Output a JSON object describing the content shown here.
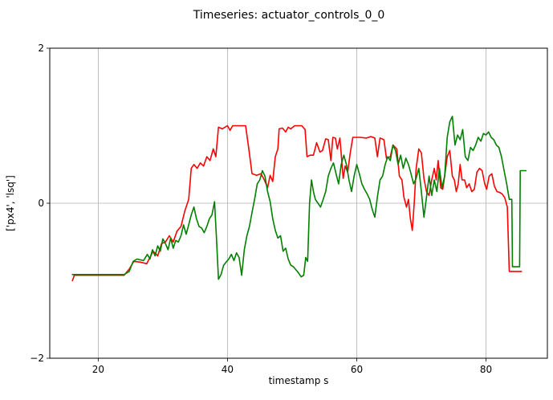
{
  "chart_data": {
    "type": "line",
    "title": "Timeseries: actuator_controls_0_0",
    "xlabel": "timestamp s",
    "ylabel": "['px4', 'lsq']",
    "xlim": [
      12.5,
      89.5
    ],
    "ylim": [
      -2,
      2
    ],
    "xticks": [
      20,
      40,
      60,
      80
    ],
    "yticks": [
      -2,
      0,
      2
    ],
    "grid": true,
    "series": [
      {
        "color": "#ff0000",
        "points": [
          [
            16.0,
            -1.0
          ],
          [
            16.3,
            -0.93
          ],
          [
            18,
            -0.93
          ],
          [
            20,
            -0.93
          ],
          [
            22,
            -0.93
          ],
          [
            24,
            -0.93
          ],
          [
            24.8,
            -0.85
          ],
          [
            25.5,
            -0.75
          ],
          [
            26.5,
            -0.76
          ],
          [
            27.5,
            -0.78
          ],
          [
            28.5,
            -0.62
          ],
          [
            29.2,
            -0.68
          ],
          [
            29.8,
            -0.52
          ],
          [
            30.4,
            -0.5
          ],
          [
            31,
            -0.42
          ],
          [
            31.6,
            -0.5
          ],
          [
            32.2,
            -0.36
          ],
          [
            32.8,
            -0.3
          ],
          [
            33.4,
            -0.1
          ],
          [
            34,
            0.05
          ],
          [
            34.4,
            0.45
          ],
          [
            34.8,
            0.5
          ],
          [
            35.3,
            0.45
          ],
          [
            35.8,
            0.52
          ],
          [
            36.3,
            0.48
          ],
          [
            36.8,
            0.6
          ],
          [
            37.3,
            0.55
          ],
          [
            37.8,
            0.7
          ],
          [
            38.2,
            0.6
          ],
          [
            38.6,
            0.98
          ],
          [
            39.2,
            0.96
          ],
          [
            40.0,
            1.0
          ],
          [
            40.4,
            0.94
          ],
          [
            40.8,
            1.0
          ],
          [
            42,
            1.0
          ],
          [
            42.8,
            1.0
          ],
          [
            43.3,
            0.7
          ],
          [
            43.8,
            0.38
          ],
          [
            44.5,
            0.36
          ],
          [
            45.2,
            0.38
          ],
          [
            45.7,
            0.3
          ],
          [
            46.2,
            0.2
          ],
          [
            46.6,
            0.36
          ],
          [
            47.0,
            0.28
          ],
          [
            47.4,
            0.6
          ],
          [
            47.8,
            0.7
          ],
          [
            48.0,
            0.96
          ],
          [
            48.5,
            0.97
          ],
          [
            49.0,
            0.92
          ],
          [
            49.4,
            0.98
          ],
          [
            49.8,
            0.96
          ],
          [
            50.4,
            1.0
          ],
          [
            51.5,
            1.0
          ],
          [
            52.0,
            0.95
          ],
          [
            52.3,
            0.6
          ],
          [
            52.8,
            0.62
          ],
          [
            53.3,
            0.62
          ],
          [
            53.8,
            0.78
          ],
          [
            54.3,
            0.66
          ],
          [
            54.7,
            0.68
          ],
          [
            55.2,
            0.83
          ],
          [
            55.6,
            0.82
          ],
          [
            56.0,
            0.55
          ],
          [
            56.3,
            0.85
          ],
          [
            56.7,
            0.84
          ],
          [
            57.0,
            0.7
          ],
          [
            57.4,
            0.84
          ],
          [
            57.9,
            0.32
          ],
          [
            58.2,
            0.48
          ],
          [
            58.6,
            0.4
          ],
          [
            59.0,
            0.65
          ],
          [
            59.4,
            0.85
          ],
          [
            60.5,
            0.85
          ],
          [
            61.5,
            0.84
          ],
          [
            62.2,
            0.86
          ],
          [
            62.8,
            0.84
          ],
          [
            63.2,
            0.6
          ],
          [
            63.6,
            0.84
          ],
          [
            64.2,
            0.82
          ],
          [
            64.6,
            0.58
          ],
          [
            65.2,
            0.6
          ],
          [
            65.6,
            0.75
          ],
          [
            66.2,
            0.7
          ],
          [
            66.6,
            0.35
          ],
          [
            67.0,
            0.3
          ],
          [
            67.3,
            0.08
          ],
          [
            67.7,
            -0.05
          ],
          [
            68.0,
            0.05
          ],
          [
            68.3,
            -0.2
          ],
          [
            68.6,
            -0.35
          ],
          [
            68.9,
            0.0
          ],
          [
            69.2,
            0.45
          ],
          [
            69.6,
            0.7
          ],
          [
            70.0,
            0.65
          ],
          [
            70.4,
            0.32
          ],
          [
            70.8,
            0.15
          ],
          [
            71.2,
            0.1
          ],
          [
            71.6,
            0.3
          ],
          [
            72.0,
            0.45
          ],
          [
            72.3,
            0.3
          ],
          [
            72.6,
            0.55
          ],
          [
            73.0,
            0.2
          ],
          [
            73.3,
            0.18
          ],
          [
            73.6,
            0.35
          ],
          [
            74.0,
            0.6
          ],
          [
            74.4,
            0.68
          ],
          [
            74.8,
            0.35
          ],
          [
            75.1,
            0.3
          ],
          [
            75.4,
            0.15
          ],
          [
            75.7,
            0.25
          ],
          [
            76.0,
            0.5
          ],
          [
            76.3,
            0.3
          ],
          [
            76.7,
            0.3
          ],
          [
            77.0,
            0.2
          ],
          [
            77.4,
            0.25
          ],
          [
            77.8,
            0.15
          ],
          [
            78.2,
            0.18
          ],
          [
            78.6,
            0.4
          ],
          [
            79.0,
            0.45
          ],
          [
            79.4,
            0.42
          ],
          [
            79.8,
            0.25
          ],
          [
            80.1,
            0.18
          ],
          [
            80.5,
            0.35
          ],
          [
            80.9,
            0.38
          ],
          [
            81.3,
            0.22
          ],
          [
            81.7,
            0.15
          ],
          [
            82.1,
            0.14
          ],
          [
            82.5,
            0.12
          ],
          [
            82.9,
            0.07
          ],
          [
            83.3,
            -0.05
          ],
          [
            83.6,
            -0.88
          ],
          [
            84.2,
            -0.88
          ],
          [
            85.5,
            -0.88
          ]
        ]
      },
      {
        "color": "#008000",
        "points": [
          [
            16.0,
            -0.92
          ],
          [
            18,
            -0.92
          ],
          [
            20,
            -0.92
          ],
          [
            22,
            -0.92
          ],
          [
            24,
            -0.92
          ],
          [
            24.8,
            -0.88
          ],
          [
            25.4,
            -0.75
          ],
          [
            26.0,
            -0.72
          ],
          [
            27.0,
            -0.74
          ],
          [
            27.6,
            -0.66
          ],
          [
            28.0,
            -0.72
          ],
          [
            28.4,
            -0.6
          ],
          [
            28.8,
            -0.68
          ],
          [
            29.2,
            -0.55
          ],
          [
            29.6,
            -0.62
          ],
          [
            30.0,
            -0.46
          ],
          [
            30.4,
            -0.52
          ],
          [
            30.8,
            -0.6
          ],
          [
            31.2,
            -0.45
          ],
          [
            31.6,
            -0.58
          ],
          [
            32.0,
            -0.48
          ],
          [
            32.4,
            -0.5
          ],
          [
            32.8,
            -0.42
          ],
          [
            33.2,
            -0.28
          ],
          [
            33.6,
            -0.4
          ],
          [
            34.0,
            -0.28
          ],
          [
            34.4,
            -0.15
          ],
          [
            34.8,
            -0.05
          ],
          [
            35.2,
            -0.2
          ],
          [
            35.6,
            -0.3
          ],
          [
            36.0,
            -0.32
          ],
          [
            36.4,
            -0.38
          ],
          [
            36.8,
            -0.3
          ],
          [
            37.2,
            -0.2
          ],
          [
            37.6,
            -0.15
          ],
          [
            38.0,
            0.02
          ],
          [
            38.3,
            -0.45
          ],
          [
            38.6,
            -0.98
          ],
          [
            39.0,
            -0.92
          ],
          [
            39.4,
            -0.8
          ],
          [
            39.8,
            -0.76
          ],
          [
            40.2,
            -0.72
          ],
          [
            40.6,
            -0.66
          ],
          [
            41.0,
            -0.74
          ],
          [
            41.4,
            -0.64
          ],
          [
            41.8,
            -0.7
          ],
          [
            42.2,
            -0.93
          ],
          [
            42.6,
            -0.6
          ],
          [
            43.0,
            -0.42
          ],
          [
            43.4,
            -0.3
          ],
          [
            43.8,
            -0.12
          ],
          [
            44.2,
            0.05
          ],
          [
            44.6,
            0.25
          ],
          [
            45.0,
            0.3
          ],
          [
            45.4,
            0.42
          ],
          [
            45.8,
            0.35
          ],
          [
            46.2,
            0.15
          ],
          [
            46.6,
            0.02
          ],
          [
            47.0,
            -0.2
          ],
          [
            47.4,
            -0.35
          ],
          [
            47.8,
            -0.45
          ],
          [
            48.2,
            -0.42
          ],
          [
            48.6,
            -0.62
          ],
          [
            49.0,
            -0.58
          ],
          [
            49.4,
            -0.72
          ],
          [
            49.8,
            -0.8
          ],
          [
            50.2,
            -0.82
          ],
          [
            50.6,
            -0.86
          ],
          [
            51.0,
            -0.9
          ],
          [
            51.4,
            -0.95
          ],
          [
            51.8,
            -0.93
          ],
          [
            52.1,
            -0.7
          ],
          [
            52.4,
            -0.75
          ],
          [
            52.7,
            0.0
          ],
          [
            53.0,
            0.3
          ],
          [
            53.3,
            0.15
          ],
          [
            53.6,
            0.05
          ],
          [
            54.0,
            0.0
          ],
          [
            54.4,
            -0.05
          ],
          [
            54.8,
            0.05
          ],
          [
            55.2,
            0.15
          ],
          [
            55.6,
            0.35
          ],
          [
            56.0,
            0.45
          ],
          [
            56.4,
            0.52
          ],
          [
            56.8,
            0.38
          ],
          [
            57.2,
            0.25
          ],
          [
            57.6,
            0.5
          ],
          [
            58.0,
            0.62
          ],
          [
            58.4,
            0.5
          ],
          [
            58.8,
            0.3
          ],
          [
            59.2,
            0.15
          ],
          [
            59.6,
            0.35
          ],
          [
            60.0,
            0.5
          ],
          [
            60.4,
            0.38
          ],
          [
            60.8,
            0.25
          ],
          [
            61.2,
            0.18
          ],
          [
            61.6,
            0.12
          ],
          [
            62.0,
            0.05
          ],
          [
            62.4,
            -0.08
          ],
          [
            62.8,
            -0.18
          ],
          [
            63.2,
            0.08
          ],
          [
            63.6,
            0.3
          ],
          [
            64.0,
            0.35
          ],
          [
            64.4,
            0.5
          ],
          [
            64.8,
            0.6
          ],
          [
            65.2,
            0.55
          ],
          [
            65.6,
            0.75
          ],
          [
            66.0,
            0.68
          ],
          [
            66.4,
            0.5
          ],
          [
            66.8,
            0.62
          ],
          [
            67.2,
            0.45
          ],
          [
            67.6,
            0.58
          ],
          [
            68.0,
            0.5
          ],
          [
            68.4,
            0.38
          ],
          [
            68.8,
            0.25
          ],
          [
            69.2,
            0.32
          ],
          [
            69.6,
            0.45
          ],
          [
            70.0,
            0.15
          ],
          [
            70.4,
            -0.18
          ],
          [
            70.8,
            0.08
          ],
          [
            71.2,
            0.35
          ],
          [
            71.6,
            0.1
          ],
          [
            72.0,
            0.3
          ],
          [
            72.4,
            0.15
          ],
          [
            72.8,
            0.45
          ],
          [
            73.2,
            0.2
          ],
          [
            73.6,
            0.35
          ],
          [
            74.0,
            0.85
          ],
          [
            74.4,
            1.05
          ],
          [
            74.8,
            1.12
          ],
          [
            75.2,
            0.75
          ],
          [
            75.6,
            0.88
          ],
          [
            76.0,
            0.82
          ],
          [
            76.4,
            0.95
          ],
          [
            76.8,
            0.6
          ],
          [
            77.2,
            0.55
          ],
          [
            77.6,
            0.72
          ],
          [
            78.0,
            0.68
          ],
          [
            78.4,
            0.75
          ],
          [
            78.8,
            0.85
          ],
          [
            79.2,
            0.8
          ],
          [
            79.6,
            0.9
          ],
          [
            80.0,
            0.88
          ],
          [
            80.4,
            0.92
          ],
          [
            80.8,
            0.85
          ],
          [
            81.2,
            0.82
          ],
          [
            81.6,
            0.75
          ],
          [
            82.0,
            0.72
          ],
          [
            82.4,
            0.6
          ],
          [
            82.8,
            0.42
          ],
          [
            83.2,
            0.25
          ],
          [
            83.6,
            0.05
          ],
          [
            84.0,
            0.05
          ],
          [
            84.1,
            -0.82
          ],
          [
            85.2,
            -0.82
          ],
          [
            85.3,
            0.42
          ],
          [
            86.2,
            0.42
          ]
        ]
      }
    ]
  }
}
